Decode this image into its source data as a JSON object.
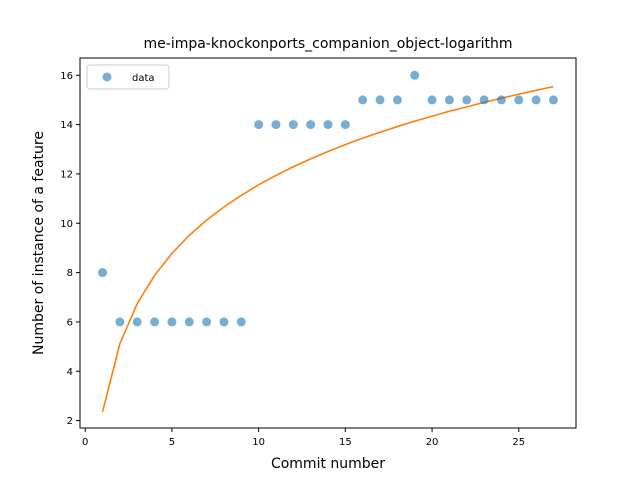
{
  "chart_data": {
    "type": "scatter",
    "title": "me-impa-knockonports_companion_object-logarithm",
    "xlabel": "Commit number",
    "ylabel": "Number of instance of a feature",
    "xlim": [
      -0.3,
      28.3
    ],
    "ylim": [
      1.7,
      16.7
    ],
    "xticks": [
      0,
      5,
      10,
      15,
      20,
      25
    ],
    "yticks": [
      2,
      4,
      6,
      8,
      10,
      12,
      14,
      16
    ],
    "grid": false,
    "legend": {
      "position": "top-left",
      "entries": [
        "data"
      ]
    },
    "series": [
      {
        "name": "data",
        "kind": "scatter",
        "color": "#1f77b4",
        "x": [
          1,
          2,
          3,
          4,
          5,
          6,
          7,
          8,
          9,
          10,
          11,
          12,
          13,
          14,
          15,
          16,
          17,
          18,
          19,
          20,
          21,
          22,
          23,
          24,
          25,
          26,
          27
        ],
        "y": [
          8,
          6,
          6,
          6,
          6,
          6,
          6,
          6,
          6,
          14,
          14,
          14,
          14,
          14,
          14,
          15,
          15,
          15,
          16,
          15,
          15,
          15,
          15,
          15,
          15,
          15,
          15
        ]
      },
      {
        "kind": "line",
        "color": "#ff7f0e",
        "x": [
          1,
          2,
          3,
          4,
          5,
          6,
          7,
          8,
          9,
          10,
          11,
          12,
          13,
          14,
          15,
          16,
          17,
          18,
          19,
          20,
          21,
          22,
          23,
          24,
          25,
          26,
          27
        ],
        "y": [
          2.35,
          5.12,
          6.74,
          7.89,
          8.78,
          9.51,
          10.13,
          10.66,
          11.13,
          11.56,
          11.94,
          12.29,
          12.61,
          12.91,
          13.19,
          13.45,
          13.69,
          13.92,
          14.14,
          14.34,
          14.54,
          14.72,
          14.9,
          15.07,
          15.23,
          15.39,
          15.54
        ]
      }
    ]
  }
}
